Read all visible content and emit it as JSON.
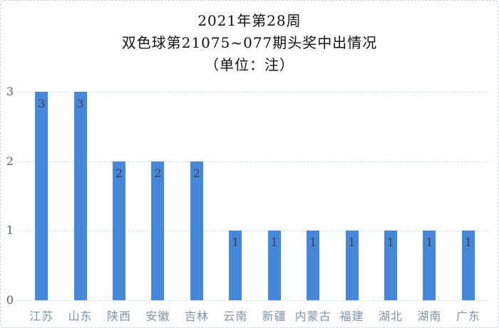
{
  "title": {
    "line1": "2021年第28周",
    "line2": "双色球第21075~077期头奖中出情况",
    "line3": "（单位：注）"
  },
  "chart_data": {
    "type": "bar",
    "title": "2021年第28周 双色球第21075~077期头奖中出情况（单位：注）",
    "categories": [
      "江苏",
      "山东",
      "陕西",
      "安徽",
      "吉林",
      "云南",
      "新疆",
      "内蒙古",
      "福建",
      "湖北",
      "湖南",
      "广东"
    ],
    "values": [
      3,
      3,
      2,
      2,
      2,
      1,
      1,
      1,
      1,
      1,
      1,
      1
    ],
    "xlabel": "",
    "ylabel": "",
    "ylim": [
      0,
      3
    ],
    "yticks": [
      3,
      2,
      1,
      0
    ],
    "grid": "horizontal-dashed",
    "legend": "none",
    "data_labels": "inside-top",
    "bar_color": "#4a8fdf",
    "bar_stripe_color": "#3b7bd0",
    "gridline_color": "#d3e3ea",
    "axis_label_color": "#8093a9",
    "tick_label_color": "#575e67",
    "value_label_color": "#3a4049"
  }
}
